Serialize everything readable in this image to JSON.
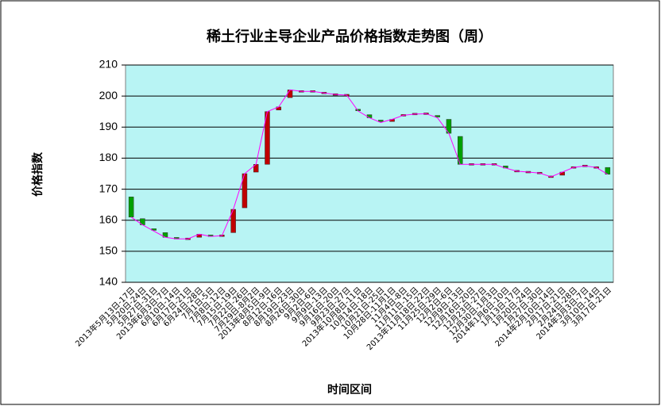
{
  "chart_data": {
    "type": "candlestick",
    "title": "稀土行业主导企业产品价格指数走势图（周）",
    "y_label": "价格指数",
    "x_label": "时间区间",
    "categories": [
      "2013年5月13日-17日",
      "5月20日-24日",
      "5月27日-31日",
      "2013年6月3日-7日",
      "6月10日-14日",
      "6月17日-21日",
      "6月24日-28日",
      "7月1日-5日",
      "7月8日-12日",
      "7月15日-19日",
      "7月22日-26日",
      "7月29日-8月2日",
      "2013年8月5日-9日",
      "8月12日-16日",
      "8月19日-23日",
      "8月26日-30日",
      "9月2日-6日",
      "9月9日-13日",
      "9月16日-20日",
      "9月23日-27日",
      "2013年10月8日-11日",
      "10月14日-18日",
      "10月21日-25日",
      "10月28日-11月1日",
      "11月4日-8日",
      "11月11日-15日",
      "2013年11月18日-22日",
      "11月25日-29日",
      "12月2日-6日",
      "12月9日-13日",
      "12月16日-20日",
      "12月23日-27日",
      "12月30日-1月3日",
      "2014年1月6日-10日",
      "1月13日-17日",
      "1月20日-24日",
      "1月27日-30日",
      "2014年2月10日-14日",
      "2月17日-21日",
      "2月24日-28日",
      "2014年3月3日-7日",
      "3月10日-14日",
      "3月17日-21日"
    ],
    "open": [
      167.5,
      160.5,
      157,
      156,
      154.2,
      154,
      154.5,
      155,
      155,
      156,
      164,
      175.5,
      178,
      195.5,
      199.5,
      201.5,
      201.5,
      201,
      200.5,
      200.3,
      195.5,
      194,
      192,
      191.8,
      193.8,
      194.2,
      194.3,
      193.5,
      192.5,
      187,
      178,
      178,
      178,
      177.5,
      175.8,
      175.5,
      175.2,
      174,
      174.5,
      176.5,
      177.5,
      177,
      177
    ],
    "close": [
      161,
      158.5,
      156.5,
      154.5,
      154,
      154,
      155.5,
      154.8,
      155,
      163.5,
      175,
      178,
      195,
      196.5,
      202,
      201.5,
      201.5,
      201,
      200.5,
      200.3,
      195.2,
      193,
      191.5,
      192.5,
      193.8,
      194.2,
      194.3,
      193,
      188,
      178,
      178,
      178,
      178,
      176.8,
      175.8,
      175.5,
      175.2,
      174,
      175.5,
      177,
      177.5,
      177,
      174.8
    ],
    "up_color": "#c00000",
    "down_color": "#00a000",
    "line_color": "#ff00ff",
    "plot_bg": "#b8f4f4",
    "ylim": [
      140,
      210
    ],
    "yticks": [
      140,
      150,
      160,
      170,
      180,
      190,
      200,
      210
    ],
    "grid": true
  }
}
